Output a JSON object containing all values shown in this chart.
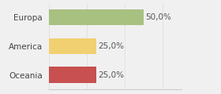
{
  "categories": [
    "Europa",
    "America",
    "Oceania"
  ],
  "values": [
    50.0,
    25.0,
    25.0
  ],
  "bar_colors": [
    "#a8c080",
    "#f0d070",
    "#c85050"
  ],
  "labels": [
    "50,0%",
    "25,0%",
    "25,0%"
  ],
  "background_color": "#f0f0f0",
  "xlim": [
    0,
    70
  ],
  "bar_height": 0.55,
  "label_fontsize": 7.5,
  "tick_fontsize": 7.5
}
